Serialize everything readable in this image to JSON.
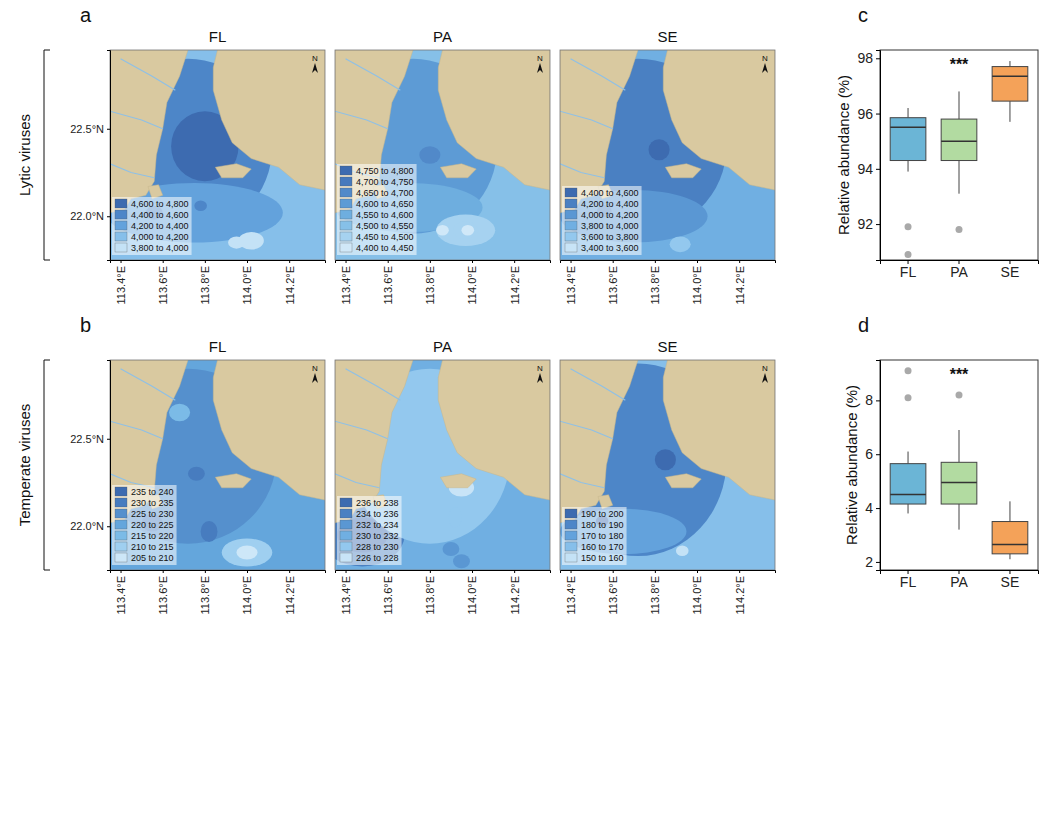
{
  "chart_data": [
    {
      "type": "contour_map",
      "panel": "a",
      "row_label": "Lytic viruses",
      "title": "FL",
      "north_label": "N",
      "xlim": [
        113.35,
        114.37
      ],
      "ylim": [
        21.75,
        22.95
      ],
      "xticks": [
        {
          "value": 113.4,
          "label": "113.4°E"
        },
        {
          "value": 113.6,
          "label": "113.6°E"
        },
        {
          "value": 113.8,
          "label": "113.8°E"
        },
        {
          "value": 114.0,
          "label": "114.0°E"
        },
        {
          "value": 114.2,
          "label": "114.2°E"
        }
      ],
      "yticks": [
        {
          "value": 22.0,
          "label": "22.0°N"
        },
        {
          "value": 22.5,
          "label": "22.5°N"
        }
      ],
      "legend": "lower left",
      "levels": [
        {
          "from": 4600,
          "to": 4800,
          "label": "4,600 to 4,800",
          "color": "#3d6bb0"
        },
        {
          "from": 4400,
          "to": 4600,
          "label": "4,400 to 4,600",
          "color": "#4d86c8"
        },
        {
          "from": 4200,
          "to": 4400,
          "label": "4,200 to 4,400",
          "color": "#63a2dc"
        },
        {
          "from": 4000,
          "to": 4200,
          "label": "4,000 to 4,200",
          "color": "#86bfea"
        },
        {
          "from": 3800,
          "to": 4000,
          "label": "3,800 to 4,000",
          "color": "#c4e2f6"
        }
      ],
      "background": 4100,
      "regions": [
        {
          "lon": 113.72,
          "lat": 22.4,
          "rx": 0.4,
          "ry": 0.5,
          "value": 4500
        },
        {
          "lon": 113.75,
          "lat": 22.02,
          "rx": 0.42,
          "ry": 0.17,
          "value": 4300
        },
        {
          "lon": 113.8,
          "lat": 22.4,
          "rx": 0.16,
          "ry": 0.2,
          "value": 4700
        },
        {
          "lon": 113.56,
          "lat": 22.02,
          "rx": 0.04,
          "ry": 0.04,
          "value": 4500
        },
        {
          "lon": 113.78,
          "lat": 22.06,
          "rx": 0.03,
          "ry": 0.03,
          "value": 4500
        },
        {
          "lon": 113.95,
          "lat": 21.85,
          "rx": 0.04,
          "ry": 0.035,
          "value": 3900
        },
        {
          "lon": 114.02,
          "lat": 21.86,
          "rx": 0.06,
          "ry": 0.05,
          "value": 3900
        }
      ]
    },
    {
      "type": "contour_map",
      "title": "PA",
      "north_label": "N",
      "tick_labels": "x",
      "xlim": [
        113.35,
        114.37
      ],
      "ylim": [
        21.75,
        22.95
      ],
      "xticks": [
        {
          "value": 113.4,
          "label": "113.4°E"
        },
        {
          "value": 113.6,
          "label": "113.6°E"
        },
        {
          "value": 113.8,
          "label": "113.8°E"
        },
        {
          "value": 114.0,
          "label": "114.0°E"
        },
        {
          "value": 114.2,
          "label": "114.2°E"
        }
      ],
      "legend": "lower left",
      "levels": [
        {
          "from": 4750,
          "to": 4800,
          "label": "4,750 to 4,800",
          "color": "#3d6bb0"
        },
        {
          "from": 4700,
          "to": 4750,
          "label": "4,700 to 4,750",
          "color": "#4679bd"
        },
        {
          "from": 4650,
          "to": 4700,
          "label": "4,650 to 4,700",
          "color": "#5189c9"
        },
        {
          "from": 4600,
          "to": 4650,
          "label": "4,600 to 4,650",
          "color": "#5d9bd5"
        },
        {
          "from": 4550,
          "to": 4600,
          "label": "4,550 to 4,600",
          "color": "#6eaedf"
        },
        {
          "from": 4500,
          "to": 4550,
          "label": "4,500 to 4,550",
          "color": "#86c0e8"
        },
        {
          "from": 4450,
          "to": 4500,
          "label": "4,450 to 4,500",
          "color": "#a6d2f0"
        },
        {
          "from": 4400,
          "to": 4450,
          "label": "4,400 to 4,450",
          "color": "#d0e8f8"
        }
      ],
      "background": 4520,
      "regions": [
        {
          "lon": 113.72,
          "lat": 22.4,
          "rx": 0.4,
          "ry": 0.5,
          "value": 4620
        },
        {
          "lon": 113.7,
          "lat": 22.05,
          "rx": 0.35,
          "ry": 0.14,
          "value": 4580
        },
        {
          "lon": 113.8,
          "lat": 22.35,
          "rx": 0.05,
          "ry": 0.05,
          "value": 4680
        },
        {
          "lon": 113.97,
          "lat": 21.92,
          "rx": 0.14,
          "ry": 0.09,
          "value": 4480
        },
        {
          "lon": 113.97,
          "lat": 21.92,
          "rx": 0.06,
          "ry": 0.05,
          "value": 4460
        },
        {
          "lon": 113.98,
          "lat": 21.92,
          "rx": 0.03,
          "ry": 0.03,
          "value": 4420
        },
        {
          "lon": 113.86,
          "lat": 21.92,
          "rx": 0.03,
          "ry": 0.03,
          "value": 4430
        }
      ]
    },
    {
      "type": "contour_map",
      "title": "SE",
      "north_label": "N",
      "tick_labels": "x",
      "xlim": [
        113.35,
        114.37
      ],
      "ylim": [
        21.75,
        22.95
      ],
      "xticks": [
        {
          "value": 113.4,
          "label": "113.4°E"
        },
        {
          "value": 113.6,
          "label": "113.6°E"
        },
        {
          "value": 113.8,
          "label": "113.8°E"
        },
        {
          "value": 114.0,
          "label": "114.0°E"
        },
        {
          "value": 114.2,
          "label": "114.2°E"
        }
      ],
      "legend": "lower left",
      "levels": [
        {
          "from": 4400,
          "to": 4600,
          "label": "4,400 to 4,600",
          "color": "#3d6bb0"
        },
        {
          "from": 4200,
          "to": 4400,
          "label": "4,200 to 4,400",
          "color": "#4a80c2"
        },
        {
          "from": 4000,
          "to": 4200,
          "label": "4,000 to 4,200",
          "color": "#5a97d3"
        },
        {
          "from": 3800,
          "to": 4000,
          "label": "3,800 to 4,000",
          "color": "#70afe2"
        },
        {
          "from": 3600,
          "to": 3800,
          "label": "3,600 to 3,800",
          "color": "#93c8ee"
        },
        {
          "from": 3400,
          "to": 3600,
          "label": "3,400 to 3,600",
          "color": "#c8e4f7"
        }
      ],
      "background": 3900,
      "regions": [
        {
          "lon": 113.72,
          "lat": 22.4,
          "rx": 0.42,
          "ry": 0.5,
          "value": 4300
        },
        {
          "lon": 113.7,
          "lat": 22.0,
          "rx": 0.35,
          "ry": 0.15,
          "value": 4100
        },
        {
          "lon": 113.82,
          "lat": 22.38,
          "rx": 0.05,
          "ry": 0.06,
          "value": 4500
        },
        {
          "lon": 113.56,
          "lat": 22.03,
          "rx": 0.035,
          "ry": 0.035,
          "value": 4300
        },
        {
          "lon": 113.92,
          "lat": 21.84,
          "rx": 0.05,
          "ry": 0.045,
          "value": 3700
        }
      ]
    },
    {
      "type": "contour_map",
      "panel": "b",
      "row_label": "Temperate viruses",
      "title": "FL",
      "north_label": "N",
      "xlim": [
        113.35,
        114.37
      ],
      "ylim": [
        21.75,
        22.95
      ],
      "xticks": [
        {
          "value": 113.4,
          "label": "113.4°E"
        },
        {
          "value": 113.6,
          "label": "113.6°E"
        },
        {
          "value": 113.8,
          "label": "113.8°E"
        },
        {
          "value": 114.0,
          "label": "114.0°E"
        },
        {
          "value": 114.2,
          "label": "114.2°E"
        }
      ],
      "yticks": [
        {
          "value": 22.0,
          "label": "22.0°N"
        },
        {
          "value": 22.5,
          "label": "22.5°N"
        }
      ],
      "legend": "lower left",
      "levels": [
        {
          "from": 235,
          "to": 240,
          "label": "235 to 240",
          "color": "#3d6bb0"
        },
        {
          "from": 230,
          "to": 235,
          "label": "230 to 235",
          "color": "#477cbf"
        },
        {
          "from": 225,
          "to": 230,
          "label": "225 to 230",
          "color": "#5590cd"
        },
        {
          "from": 220,
          "to": 225,
          "label": "220 to 225",
          "color": "#64a6dc"
        },
        {
          "from": 215,
          "to": 220,
          "label": "215 to 220",
          "color": "#7bbbe7"
        },
        {
          "from": 210,
          "to": 215,
          "label": "210 to 215",
          "color": "#9fcff0"
        },
        {
          "from": 205,
          "to": 210,
          "label": "205 to 210",
          "color": "#cde7f8"
        }
      ],
      "background": 222,
      "regions": [
        {
          "lon": 113.72,
          "lat": 22.4,
          "rx": 0.42,
          "ry": 0.5,
          "value": 228
        },
        {
          "lon": 113.68,
          "lat": 22.65,
          "rx": 0.05,
          "ry": 0.05,
          "value": 218
        },
        {
          "lon": 113.76,
          "lat": 22.3,
          "rx": 0.04,
          "ry": 0.04,
          "value": 232
        },
        {
          "lon": 113.55,
          "lat": 22.02,
          "rx": 0.05,
          "ry": 0.05,
          "value": 233
        },
        {
          "lon": 113.82,
          "lat": 21.97,
          "rx": 0.04,
          "ry": 0.06,
          "value": 233
        },
        {
          "lon": 114.0,
          "lat": 21.85,
          "rx": 0.12,
          "ry": 0.08,
          "value": 213
        },
        {
          "lon": 114.0,
          "lat": 21.85,
          "rx": 0.05,
          "ry": 0.04,
          "value": 208
        },
        {
          "lon": 113.92,
          "lat": 21.87,
          "rx": 0.03,
          "ry": 0.03,
          "value": 212
        }
      ]
    },
    {
      "type": "contour_map",
      "title": "PA",
      "north_label": "N",
      "tick_labels": "x",
      "xlim": [
        113.35,
        114.37
      ],
      "ylim": [
        21.75,
        22.95
      ],
      "xticks": [
        {
          "value": 113.4,
          "label": "113.4°E"
        },
        {
          "value": 113.6,
          "label": "113.6°E"
        },
        {
          "value": 113.8,
          "label": "113.8°E"
        },
        {
          "value": 114.0,
          "label": "114.0°E"
        },
        {
          "value": 114.2,
          "label": "114.2°E"
        }
      ],
      "legend": "lower left",
      "levels": [
        {
          "from": 236,
          "to": 238,
          "label": "236 to 238",
          "color": "#3d6bb0"
        },
        {
          "from": 234,
          "to": 236,
          "label": "234 to 236",
          "color": "#4a80c2"
        },
        {
          "from": 232,
          "to": 234,
          "label": "232 to 234",
          "color": "#5a97d3"
        },
        {
          "from": 230,
          "to": 232,
          "label": "230 to 232",
          "color": "#70afe2"
        },
        {
          "from": 228,
          "to": 230,
          "label": "228 to 230",
          "color": "#93c8ee"
        },
        {
          "from": 226,
          "to": 228,
          "label": "226 to 228",
          "color": "#c8e4f7"
        }
      ],
      "background": 231,
      "regions": [
        {
          "lon": 113.48,
          "lat": 21.95,
          "rx": 0.2,
          "ry": 0.18,
          "value": 235
        },
        {
          "lon": 113.48,
          "lat": 21.95,
          "rx": 0.12,
          "ry": 0.1,
          "value": 237
        },
        {
          "lon": 113.8,
          "lat": 22.4,
          "rx": 0.38,
          "ry": 0.5,
          "value": 229
        },
        {
          "lon": 113.95,
          "lat": 22.22,
          "rx": 0.06,
          "ry": 0.05,
          "value": 227
        },
        {
          "lon": 113.92,
          "lat": 22.05,
          "rx": 0.03,
          "ry": 0.06,
          "value": 229
        },
        {
          "lon": 113.9,
          "lat": 21.87,
          "rx": 0.04,
          "ry": 0.04,
          "value": 232
        },
        {
          "lon": 113.95,
          "lat": 21.8,
          "rx": 0.04,
          "ry": 0.04,
          "value": 233
        }
      ]
    },
    {
      "type": "contour_map",
      "title": "SE",
      "north_label": "N",
      "tick_labels": "x",
      "xlim": [
        113.35,
        114.37
      ],
      "ylim": [
        21.75,
        22.95
      ],
      "xticks": [
        {
          "value": 113.4,
          "label": "113.4°E"
        },
        {
          "value": 113.6,
          "label": "113.6°E"
        },
        {
          "value": 113.8,
          "label": "113.8°E"
        },
        {
          "value": 114.0,
          "label": "114.0°E"
        },
        {
          "value": 114.2,
          "label": "114.2°E"
        }
      ],
      "legend": "lower left",
      "levels": [
        {
          "from": 190,
          "to": 200,
          "label": "190 to 200",
          "color": "#3d6bb0"
        },
        {
          "from": 180,
          "to": 190,
          "label": "180 to 190",
          "color": "#4d86c8"
        },
        {
          "from": 170,
          "to": 180,
          "label": "170 to 180",
          "color": "#63a2dc"
        },
        {
          "from": 160,
          "to": 170,
          "label": "160 to 170",
          "color": "#86bfea"
        },
        {
          "from": 150,
          "to": 160,
          "label": "150 to 160",
          "color": "#c4e2f6"
        }
      ],
      "background": 168,
      "regions": [
        {
          "lon": 113.72,
          "lat": 22.38,
          "rx": 0.42,
          "ry": 0.55,
          "value": 182
        },
        {
          "lon": 113.65,
          "lat": 21.97,
          "rx": 0.3,
          "ry": 0.13,
          "value": 176
        },
        {
          "lon": 113.85,
          "lat": 22.38,
          "rx": 0.05,
          "ry": 0.06,
          "value": 195
        },
        {
          "lon": 113.55,
          "lat": 22.03,
          "rx": 0.03,
          "ry": 0.03,
          "value": 195
        },
        {
          "lon": 113.93,
          "lat": 21.86,
          "rx": 0.03,
          "ry": 0.03,
          "value": 155
        }
      ]
    },
    {
      "type": "box",
      "panel": "c",
      "ylabel": "Relative abundance (%)",
      "annotation": "***",
      "categories": [
        "FL",
        "PA",
        "SE"
      ],
      "colors": [
        "#6bb5d6",
        "#b2dba1",
        "#f4a259"
      ],
      "ylim": [
        90.7,
        98.3
      ],
      "yticks": [
        92,
        94,
        96,
        98
      ],
      "boxes": [
        {
          "whisker_low": 93.9,
          "q1": 94.3,
          "median": 95.5,
          "q3": 95.85,
          "whisker_high": 96.2,
          "outliers": [
            91.9,
            90.9
          ]
        },
        {
          "whisker_low": 93.1,
          "q1": 94.3,
          "median": 95.0,
          "q3": 95.8,
          "whisker_high": 96.8,
          "outliers": [
            91.8
          ]
        },
        {
          "whisker_low": 95.7,
          "q1": 96.45,
          "median": 97.35,
          "q3": 97.7,
          "whisker_high": 97.9,
          "outliers": []
        }
      ]
    },
    {
      "type": "box",
      "panel": "d",
      "ylabel": "Relative abundance (%)",
      "annotation": "***",
      "categories": [
        "FL",
        "PA",
        "SE"
      ],
      "colors": [
        "#6bb5d6",
        "#b2dba1",
        "#f4a259"
      ],
      "ylim": [
        1.7,
        9.5
      ],
      "yticks": [
        2,
        4,
        6,
        8
      ],
      "boxes": [
        {
          "whisker_low": 3.8,
          "q1": 4.15,
          "median": 4.5,
          "q3": 5.65,
          "whisker_high": 6.1,
          "outliers": [
            8.1,
            9.1
          ]
        },
        {
          "whisker_low": 3.2,
          "q1": 4.15,
          "median": 4.95,
          "q3": 5.7,
          "whisker_high": 6.9,
          "outliers": [
            8.2
          ]
        },
        {
          "whisker_low": 2.1,
          "q1": 2.3,
          "median": 2.65,
          "q3": 3.5,
          "whisker_high": 4.25,
          "outliers": []
        }
      ]
    }
  ]
}
